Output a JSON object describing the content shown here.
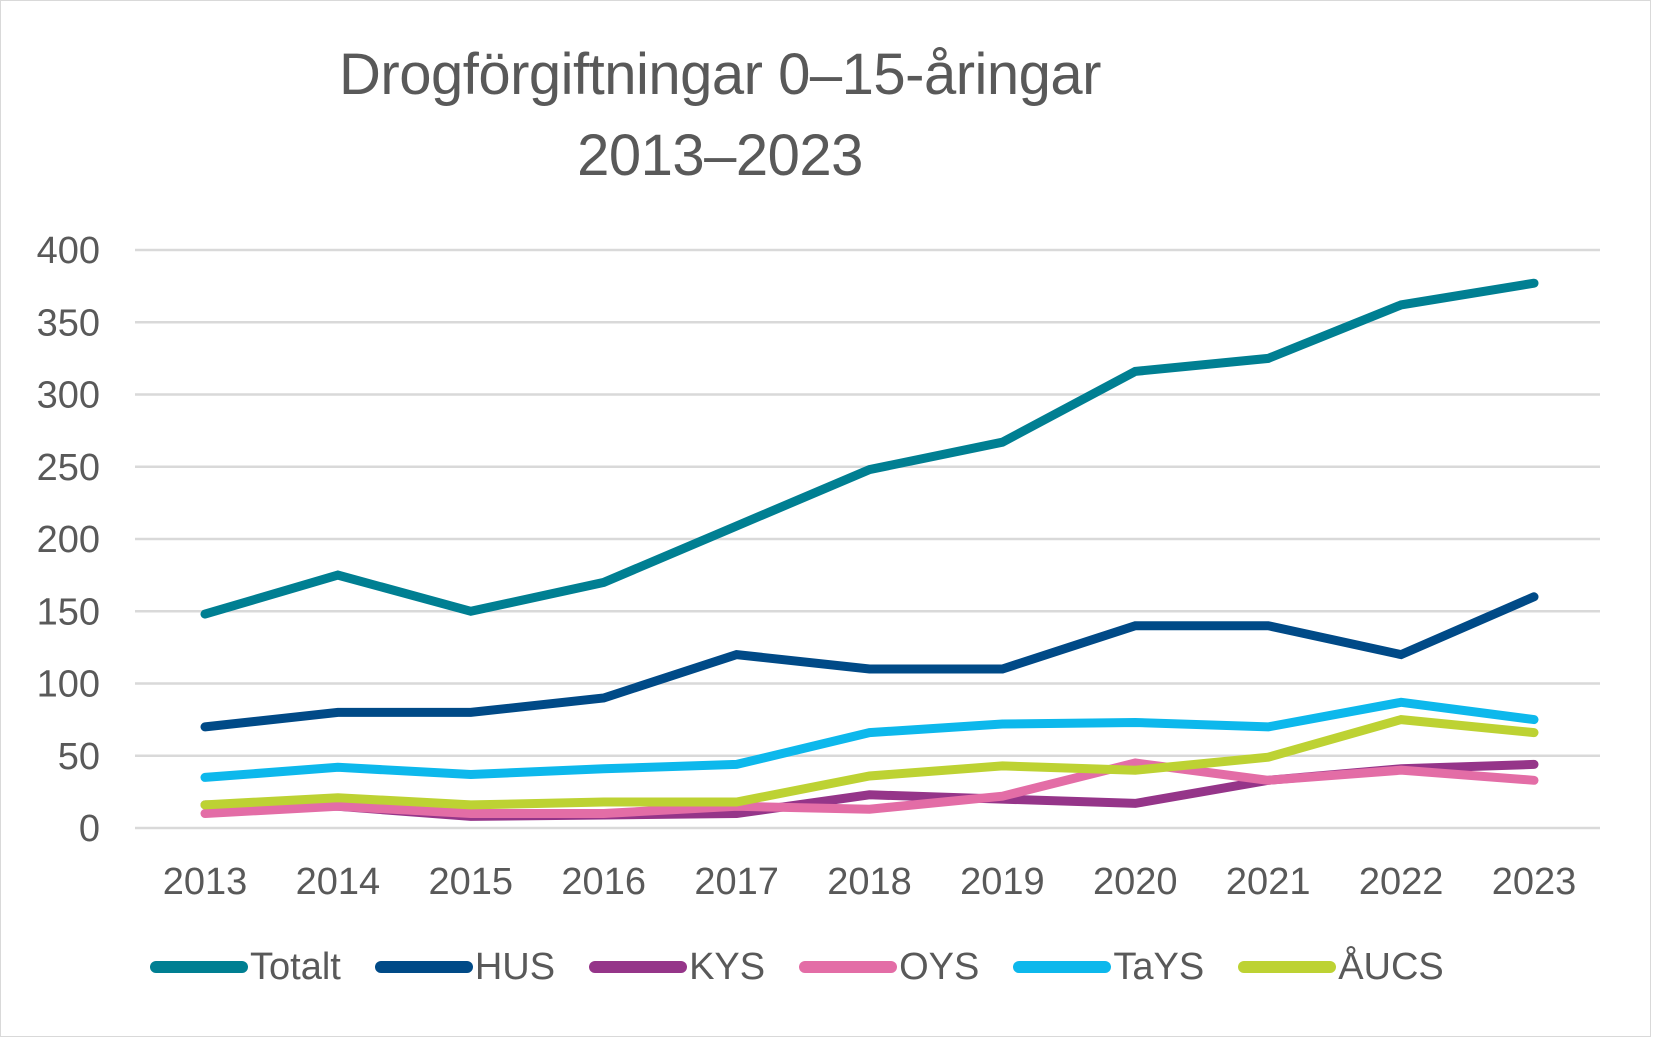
{
  "chart_data": {
    "type": "line",
    "title": "Drogförgiftningar 0–15-åringar 2013–2023",
    "title_lines": [
      "Drogförgiftningar 0–15-åringar",
      "2013–2023"
    ],
    "xlabel": "",
    "ylabel": "",
    "x": [
      "2013",
      "2014",
      "2015",
      "2016",
      "2017",
      "2018",
      "2019",
      "2020",
      "2021",
      "2022",
      "2023"
    ],
    "ylim": [
      0,
      400
    ],
    "yticks": [
      0,
      50,
      100,
      150,
      200,
      250,
      300,
      350,
      400
    ],
    "grid": true,
    "legend_position": "bottom",
    "series": [
      {
        "name": "Totalt",
        "color": "#007F92",
        "values": [
          148,
          175,
          150,
          170,
          209,
          248,
          267,
          316,
          325,
          362,
          377
        ]
      },
      {
        "name": "HUS",
        "color": "#004A87",
        "values": [
          70,
          80,
          80,
          90,
          120,
          110,
          110,
          140,
          140,
          120,
          160
        ]
      },
      {
        "name": "KYS",
        "color": "#953589",
        "values": [
          16,
          15,
          8,
          9,
          10,
          23,
          20,
          17,
          33,
          41,
          44
        ]
      },
      {
        "name": "OYS",
        "color": "#E36DA6",
        "values": [
          10,
          15,
          10,
          10,
          15,
          13,
          22,
          45,
          33,
          40,
          33
        ]
      },
      {
        "name": "TaYS",
        "color": "#0DB8EC",
        "values": [
          35,
          42,
          37,
          41,
          44,
          66,
          72,
          73,
          70,
          87,
          75
        ]
      },
      {
        "name": "ÅUCS",
        "color": "#BDD233",
        "values": [
          16,
          21,
          16,
          18,
          18,
          36,
          43,
          40,
          49,
          75,
          66
        ]
      }
    ]
  },
  "colors": {
    "text": "#595959",
    "gridline": "#D9D9D9",
    "border": "#D9D9D9"
  }
}
